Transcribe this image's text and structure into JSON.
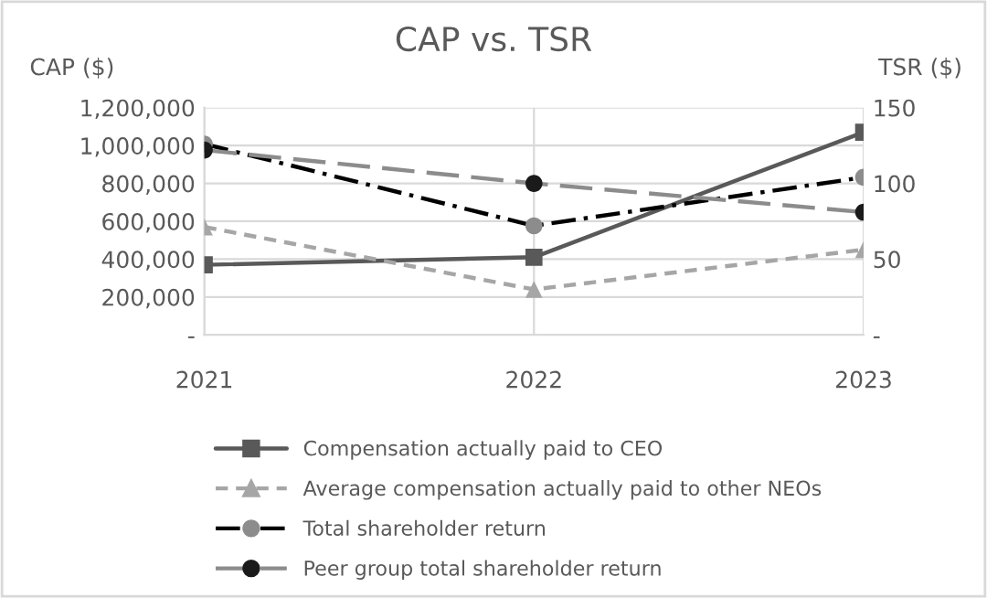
{
  "chart_data": {
    "type": "line",
    "title": "CAP vs. TSR",
    "ylabel": "CAP ($)",
    "y2label": "TSR ($)",
    "categories": [
      "2021",
      "2022",
      "2023"
    ],
    "series": [
      {
        "name": "Compensation actually paid to CEO",
        "color": "#595959",
        "colors": [
          "#595959",
          "#595959",
          "#595959"
        ],
        "marker": "square",
        "line_style": "solid",
        "values": [
          370000,
          410000,
          1070000
        ]
      },
      {
        "name": "Average compensation actually paid to other NEOs",
        "color": "#a6a6a6",
        "colors": [
          "#a6a6a6",
          "#a6a6a6",
          "#a6a6a6"
        ],
        "marker": "triangle",
        "line_style": "dashed",
        "values": [
          570000,
          240000,
          450000
        ]
      },
      {
        "name": "Total shareholder return",
        "color": "#000000",
        "colors": [
          "#8c8c8c",
          "#8c8c8c",
          "#8c8c8c"
        ],
        "marker": "circle",
        "line_style": "dashdot",
        "axis": "y2",
        "values": [
          126,
          72,
          104
        ]
      },
      {
        "name": "Peer group total shareholder return",
        "color": "#8c8c8c",
        "colors": [
          "#1a1a1a",
          "#1a1a1a",
          "#1a1a1a"
        ],
        "marker": "circle",
        "line_style": "longdash",
        "axis": "y2",
        "values": [
          122,
          100,
          81
        ]
      }
    ],
    "ylim": [
      0,
      1200000
    ],
    "yticks": [
      {
        "value": 0,
        "label": "-"
      },
      {
        "value": 200000,
        "label": "200,000"
      },
      {
        "value": 400000,
        "label": "400,000"
      },
      {
        "value": 600000,
        "label": "600,000"
      },
      {
        "value": 800000,
        "label": "800,000"
      },
      {
        "value": 1000000,
        "label": "1,000,000"
      },
      {
        "value": 1200000,
        "label": "1,200,000"
      }
    ],
    "y2lim": [
      0,
      150
    ],
    "y2ticks": [
      {
        "value": 0,
        "label": "-"
      },
      50,
      100,
      150
    ],
    "grid": true,
    "legend": "bottom"
  }
}
